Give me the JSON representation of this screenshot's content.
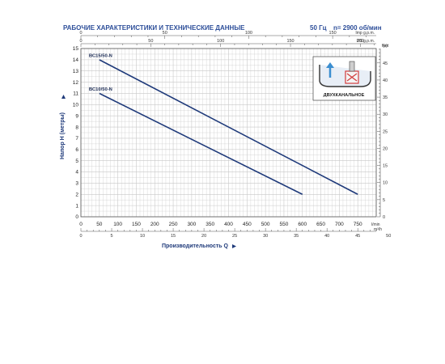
{
  "header": {
    "title": "РАБОЧИЕ ХАРАКТЕРИСТИКИ И ТЕХНИЧЕСКИЕ ДАННЫЕ",
    "frequency": "50 Гц",
    "speed": "n= 2900 об/мин"
  },
  "colors": {
    "curve": "#1f3a7a",
    "header": "#2e4f9a",
    "grid": "#c8c8c8",
    "frame": "#555555",
    "pump_red": "#d23c3c"
  },
  "chart_data": {
    "type": "line",
    "title": "",
    "xlabel": "Производительность Q",
    "ylabel": "Напор H (метры)",
    "x_unit": "l/min",
    "xlim": [
      0,
      800
    ],
    "ylim": [
      0,
      15
    ],
    "x_ticks": [
      0,
      50,
      100,
      150,
      200,
      250,
      300,
      350,
      400,
      450,
      500,
      550,
      600,
      650,
      700,
      750
    ],
    "y_ticks": [
      0,
      1,
      2,
      3,
      4,
      5,
      6,
      7,
      8,
      9,
      10,
      11,
      12,
      13,
      14,
      15
    ],
    "grid": true,
    "series": [
      {
        "name": "BC15/50-N",
        "x": [
          50,
          750
        ],
        "y": [
          14.0,
          2.0
        ]
      },
      {
        "name": "BC10/50-N",
        "x": [
          50,
          600
        ],
        "y": [
          11.0,
          2.0
        ]
      }
    ],
    "secondary_axes": {
      "us_gpm": {
        "label": "US g.p.m.",
        "ticks": [
          0,
          50,
          100,
          150,
          200
        ]
      },
      "imp_gpm": {
        "label": "Imp g.p.m.",
        "ticks": [
          0,
          50,
          100,
          150
        ]
      },
      "m3h": {
        "label": "m³/h",
        "ticks": [
          0,
          5,
          10,
          15,
          20,
          25,
          30,
          35,
          40,
          45,
          50
        ]
      },
      "feet": {
        "label": "feet",
        "ticks": [
          0,
          5,
          10,
          15,
          20,
          25,
          30,
          35,
          40,
          45,
          50
        ]
      }
    },
    "inset_label": "ДВУХКАНАЛЬНОЕ"
  }
}
